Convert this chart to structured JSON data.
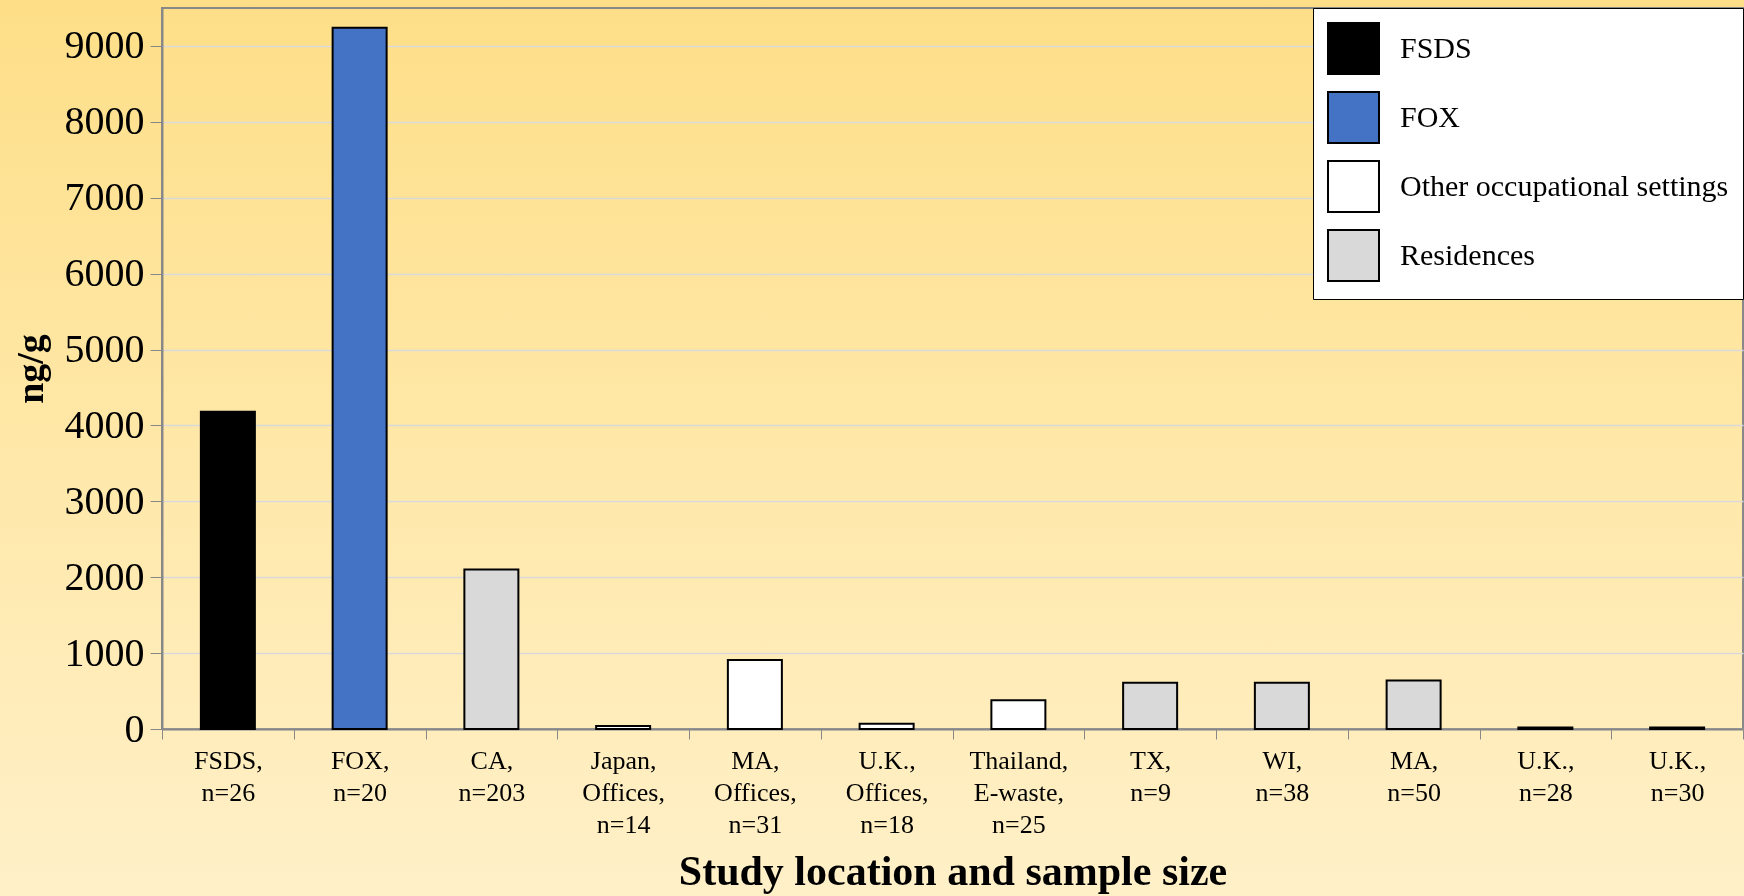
{
  "chart_data": {
    "type": "bar",
    "xlabel": "Study location and sample size",
    "ylabel": "ng/g",
    "categories": [
      "FSDS, n=26",
      "FOX, n=20",
      "CA, n=203",
      "Japan, Offices, n=14",
      "MA, Offices, n=31",
      "U.K., Offices, n=18",
      "Thailand, E-waste, n=25",
      "TX, n=9",
      "WI, n=38",
      "MA, n=50",
      "U.K., n=28",
      "U.K., n=30"
    ],
    "series": [
      {
        "name": "FSDS",
        "color": "#000000",
        "values": [
          4180,
          null,
          null,
          null,
          null,
          null,
          null,
          null,
          null,
          null,
          null,
          null
        ]
      },
      {
        "name": "FOX",
        "color": "#4472c4",
        "values": [
          null,
          9240,
          null,
          null,
          null,
          null,
          null,
          null,
          null,
          null,
          null,
          null
        ]
      },
      {
        "name": "Other occupational settings",
        "color": "#ffffff",
        "values": [
          null,
          null,
          null,
          40,
          910,
          70,
          380,
          null,
          null,
          null,
          null,
          null
        ]
      },
      {
        "name": "Residences",
        "color": "#d9d9d9",
        "values": [
          null,
          null,
          2100,
          null,
          null,
          null,
          null,
          610,
          610,
          640,
          20,
          20
        ]
      }
    ],
    "ylim": [
      0,
      9500
    ],
    "yticks": [
      0,
      1000,
      2000,
      3000,
      4000,
      5000,
      6000,
      7000,
      8000,
      9000
    ],
    "grid": "y",
    "legend": "top right"
  }
}
